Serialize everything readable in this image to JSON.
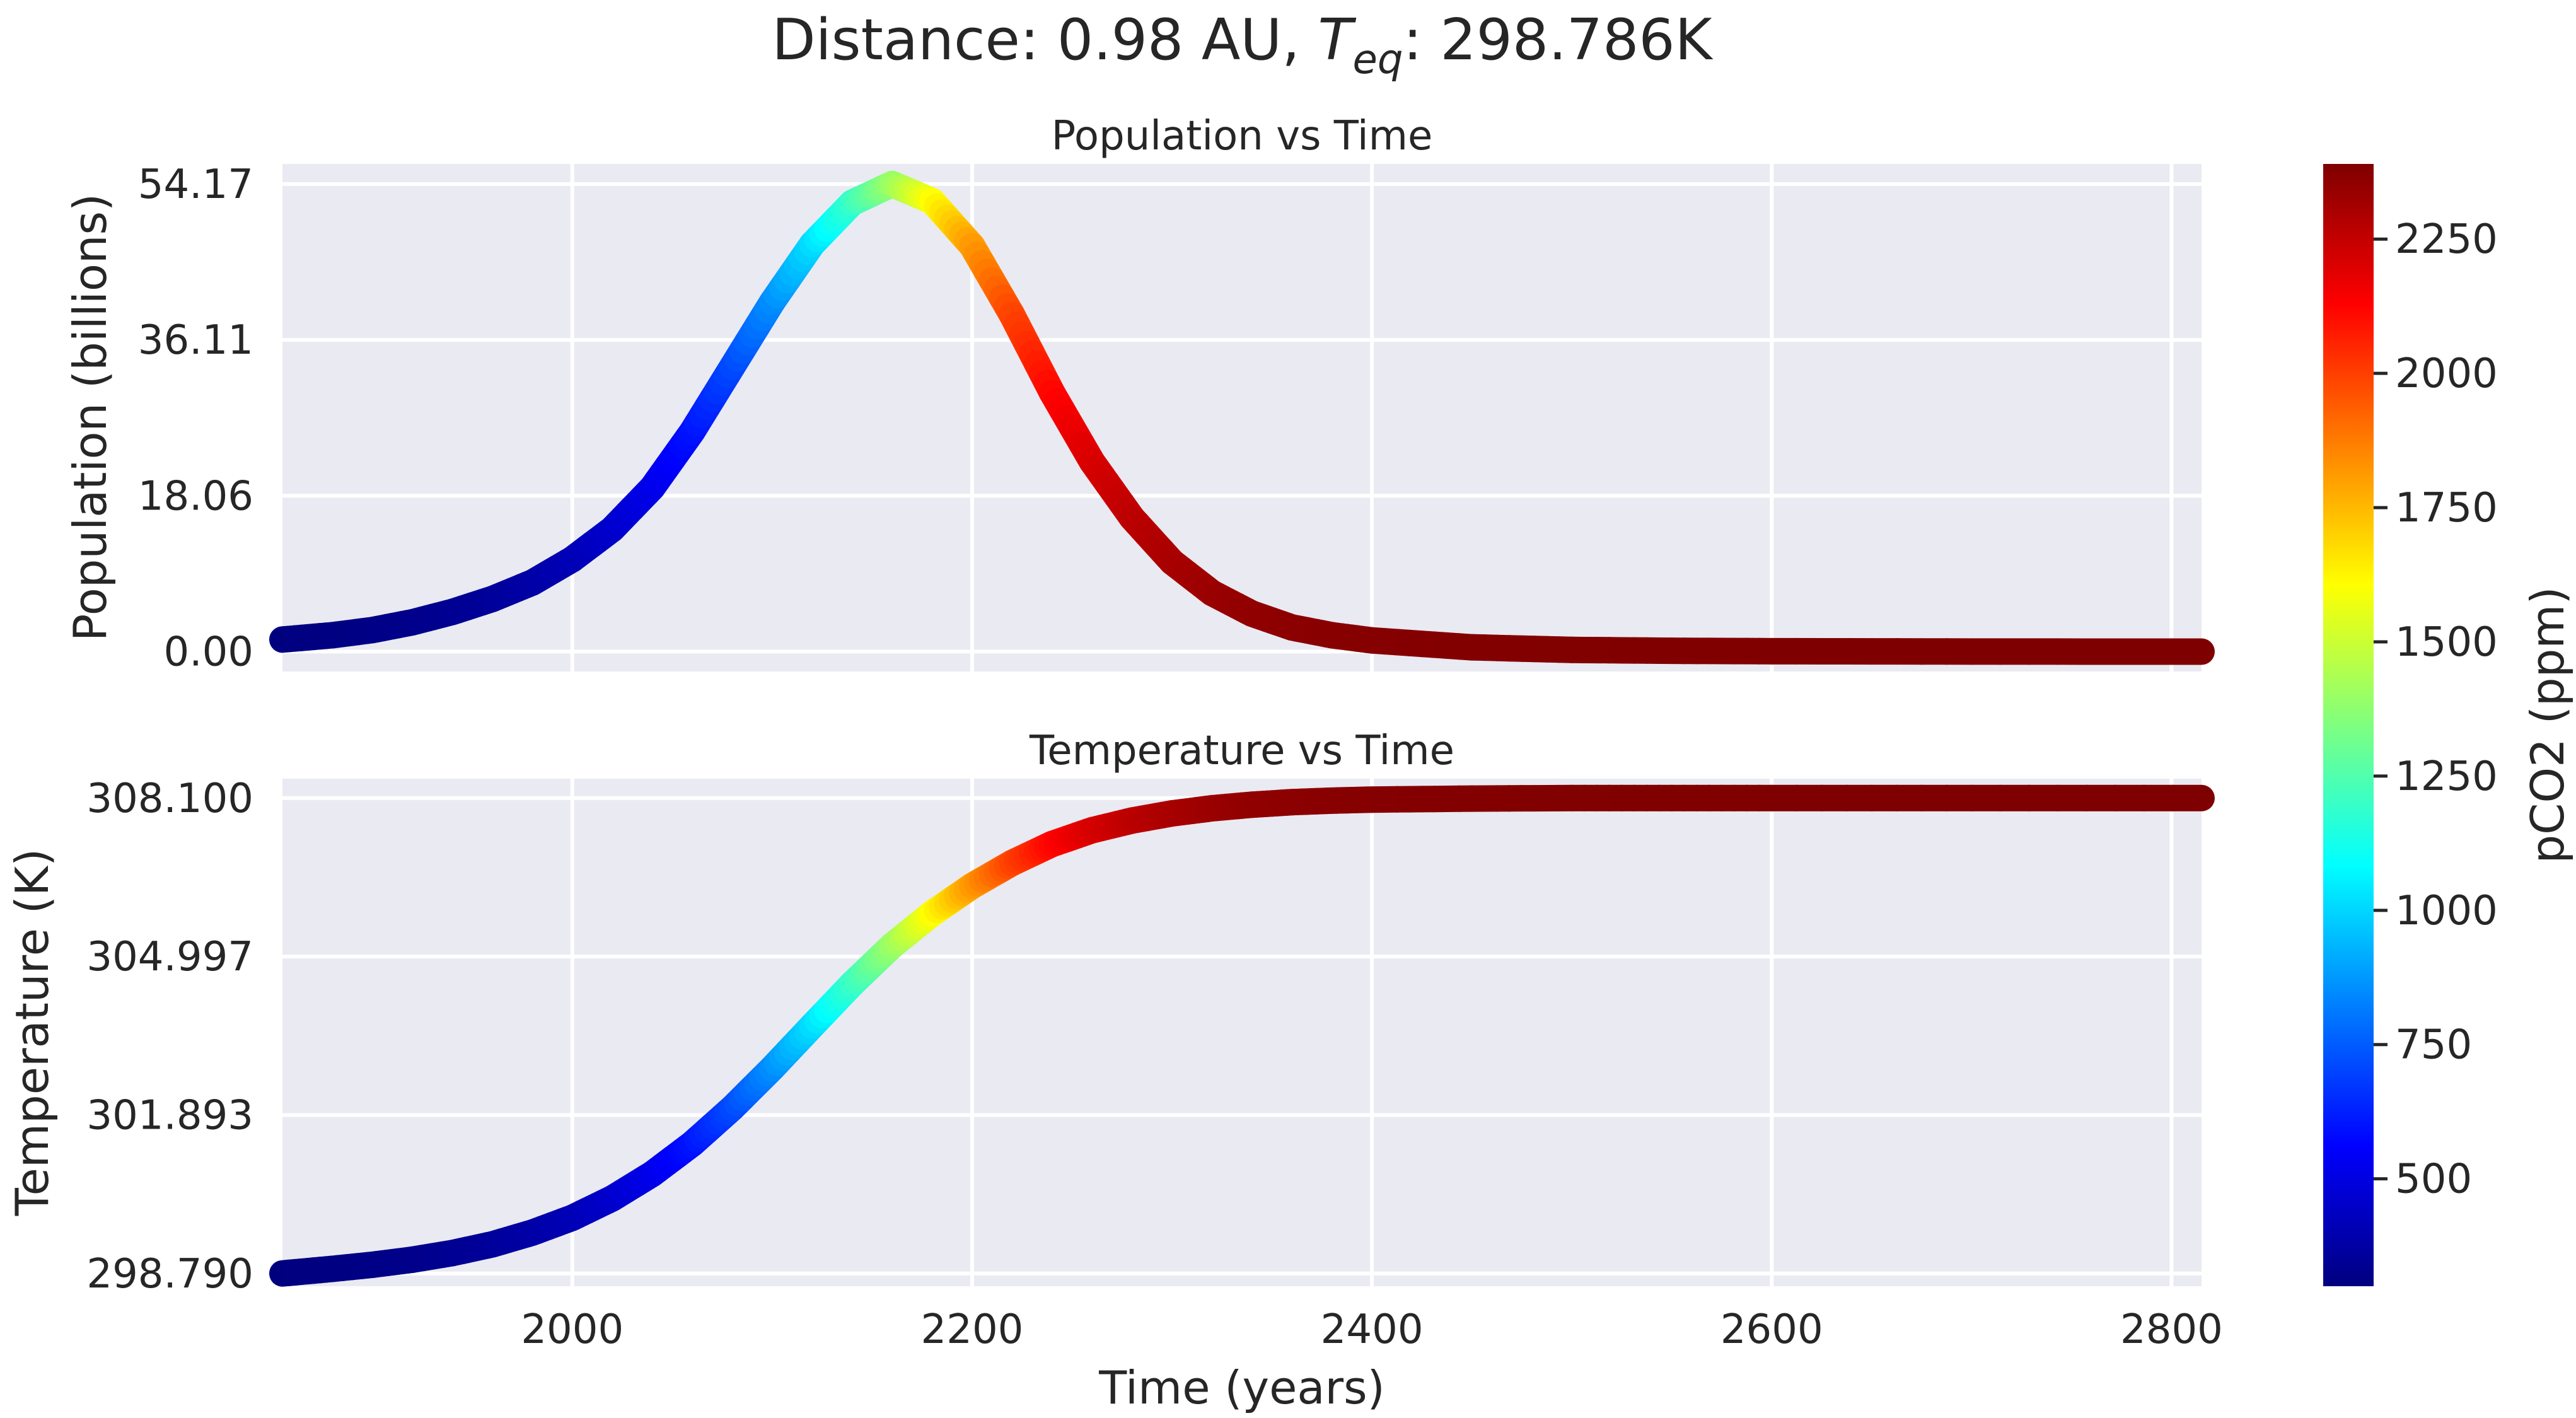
{
  "figure": {
    "title_prefix": "Distance: 0.98 AU,   ",
    "title_symbol": "T",
    "title_subscript": "eq",
    "title_suffix": ": 298.786K"
  },
  "chart_data": [
    {
      "type": "line",
      "title": "Population vs Time",
      "xlabel": "",
      "ylabel": "Population (billions)",
      "xlim": [
        1855,
        2815
      ],
      "ylim": [
        -2.3,
        56.5
      ],
      "yticks": [
        0.0,
        18.06,
        36.11,
        54.17
      ],
      "ytick_labels": [
        "0.00",
        "18.06",
        "36.11",
        "54.17"
      ],
      "xticks": [
        2000,
        2200,
        2400,
        2600,
        2800
      ],
      "grid": true,
      "colormap": "jet",
      "color_by": "pCO2 (ppm)",
      "series": [
        {
          "x": [
            1855,
            1880,
            1900,
            1920,
            1940,
            1960,
            1980,
            2000,
            2020,
            2040,
            2060,
            2080,
            2100,
            2120,
            2140,
            2160,
            2180,
            2200,
            2220,
            2240,
            2260,
            2280,
            2300,
            2320,
            2340,
            2360,
            2380,
            2400,
            2450,
            2500,
            2550,
            2600,
            2700,
            2815
          ],
          "y": [
            1.4,
            1.9,
            2.5,
            3.4,
            4.6,
            6.1,
            8.0,
            10.7,
            14.2,
            19.0,
            25.5,
            33.0,
            40.5,
            47.2,
            52.0,
            54.17,
            52.2,
            47.0,
            39.0,
            30.0,
            22.0,
            15.5,
            10.4,
            6.8,
            4.4,
            2.8,
            1.9,
            1.3,
            0.5,
            0.2,
            0.1,
            0.05,
            0.01,
            0.0
          ],
          "pco2": [
            300,
            305,
            312,
            322,
            335,
            352,
            375,
            405,
            450,
            510,
            590,
            700,
            840,
            1000,
            1180,
            1380,
            1590,
            1800,
            1980,
            2110,
            2200,
            2260,
            2300,
            2330,
            2350,
            2362,
            2370,
            2376,
            2383,
            2386,
            2388,
            2389,
            2390,
            2390
          ]
        }
      ]
    },
    {
      "type": "line",
      "title": "Temperature vs Time",
      "xlabel": "Time (years)",
      "ylabel": "Temperature (K)",
      "xlim": [
        1855,
        2815
      ],
      "ylim": [
        298.54,
        308.48
      ],
      "yticks": [
        298.79,
        301.893,
        304.997,
        308.1
      ],
      "ytick_labels": [
        "298.790",
        "301.893",
        "304.997",
        "308.100"
      ],
      "xticks": [
        2000,
        2200,
        2400,
        2600,
        2800
      ],
      "xtick_labels": [
        "2000",
        "2200",
        "2400",
        "2600",
        "2800"
      ],
      "grid": true,
      "colormap": "jet",
      "color_by": "pCO2 (ppm)",
      "series": [
        {
          "x": [
            1855,
            1880,
            1900,
            1920,
            1940,
            1960,
            1980,
            2000,
            2020,
            2040,
            2060,
            2080,
            2100,
            2120,
            2140,
            2160,
            2180,
            2200,
            2220,
            2240,
            2260,
            2280,
            2300,
            2320,
            2340,
            2360,
            2380,
            2400,
            2450,
            2500,
            2550,
            2600,
            2700,
            2815
          ],
          "y": [
            298.79,
            298.88,
            298.96,
            299.06,
            299.19,
            299.36,
            299.59,
            299.88,
            300.26,
            300.74,
            301.33,
            302.03,
            302.81,
            303.64,
            304.46,
            305.21,
            305.84,
            306.38,
            306.83,
            307.2,
            307.47,
            307.66,
            307.8,
            307.9,
            307.97,
            308.02,
            308.05,
            308.07,
            308.09,
            308.1,
            308.1,
            308.1,
            308.1,
            308.1
          ],
          "pco2": [
            300,
            305,
            312,
            322,
            335,
            352,
            375,
            405,
            450,
            510,
            590,
            700,
            840,
            1000,
            1180,
            1380,
            1590,
            1800,
            1980,
            2110,
            2200,
            2260,
            2300,
            2330,
            2350,
            2362,
            2370,
            2376,
            2383,
            2386,
            2388,
            2389,
            2390,
            2390
          ]
        }
      ]
    }
  ],
  "colorbar": {
    "label": "pCO2 (ppm)",
    "range": [
      300,
      2390
    ],
    "ticks": [
      500,
      750,
      1000,
      1250,
      1500,
      1750,
      2000,
      2250
    ],
    "tick_labels": [
      "500",
      "750",
      "1000",
      "1250",
      "1500",
      "1750",
      "2000",
      "2250"
    ],
    "colormap": "jet"
  },
  "colors": {
    "panel_background": "#eaeaf2",
    "grid": "#ffffff",
    "text": "#262626",
    "jet_stops": [
      "#00007f",
      "#0000ff",
      "#007fff",
      "#00ffff",
      "#7fff7f",
      "#ffff00",
      "#ff7f00",
      "#ff0000",
      "#7f0000"
    ]
  }
}
